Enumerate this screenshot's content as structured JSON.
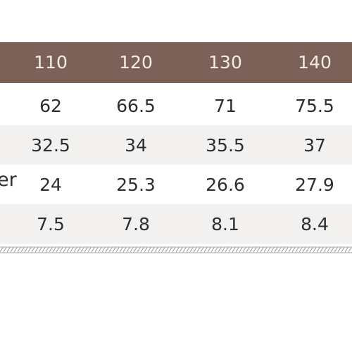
{
  "table": {
    "header": [
      "110",
      "120",
      "130",
      "140"
    ],
    "rows": [
      [
        "62",
        "66.5",
        "71",
        "75.5"
      ],
      [
        "32.5",
        "34",
        "35.5",
        "37"
      ],
      [
        "24",
        "25.3",
        "26.6",
        "27.9"
      ],
      [
        "7.5",
        "7.8",
        "8.1",
        "8.4"
      ]
    ],
    "clipped_label": "er"
  }
}
